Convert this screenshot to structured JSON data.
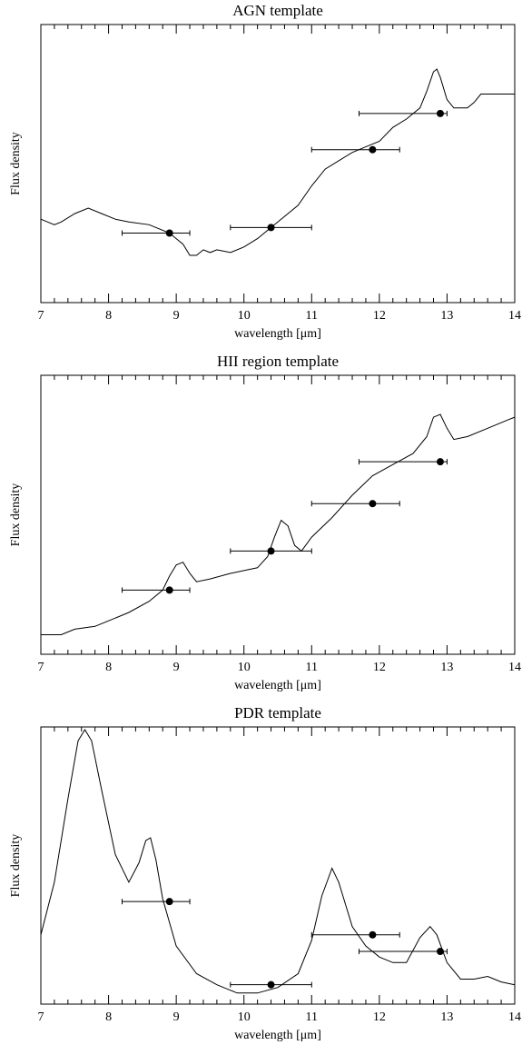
{
  "chart_data": [
    {
      "type": "line",
      "title": "AGN template",
      "xlabel": "wavelength [μm]",
      "ylabel": "Flux density",
      "color": "#000000",
      "xlim": [
        7,
        14
      ],
      "ylim": [
        0,
        1
      ],
      "xticks": [
        7,
        8,
        9,
        10,
        11,
        12,
        13,
        14
      ],
      "x": [
        7.0,
        7.1,
        7.2,
        7.3,
        7.5,
        7.7,
        7.9,
        8.1,
        8.3,
        8.6,
        8.9,
        9.0,
        9.1,
        9.2,
        9.3,
        9.4,
        9.5,
        9.6,
        9.8,
        10.0,
        10.2,
        10.4,
        10.6,
        10.8,
        11.0,
        11.2,
        11.4,
        11.6,
        11.8,
        12.0,
        12.2,
        12.4,
        12.6,
        12.7,
        12.8,
        12.85,
        12.9,
        13.0,
        13.1,
        13.3,
        13.4,
        13.5,
        13.6,
        13.8,
        14.0
      ],
      "values": [
        0.3,
        0.29,
        0.28,
        0.29,
        0.32,
        0.34,
        0.32,
        0.3,
        0.29,
        0.28,
        0.25,
        0.23,
        0.21,
        0.17,
        0.17,
        0.19,
        0.18,
        0.19,
        0.18,
        0.2,
        0.23,
        0.27,
        0.31,
        0.35,
        0.42,
        0.48,
        0.51,
        0.54,
        0.56,
        0.58,
        0.63,
        0.66,
        0.7,
        0.76,
        0.83,
        0.84,
        0.81,
        0.73,
        0.7,
        0.7,
        0.72,
        0.75,
        0.75,
        0.75,
        0.75
      ],
      "points": {
        "x": [
          8.9,
          10.4,
          11.9,
          12.9
        ],
        "values": [
          0.25,
          0.27,
          0.55,
          0.68
        ],
        "x_low": [
          8.2,
          9.8,
          11.0,
          11.7
        ],
        "x_high": [
          9.2,
          11.0,
          12.3,
          13.0
        ]
      }
    },
    {
      "type": "line",
      "title": "HII region template",
      "xlabel": "wavelength [μm]",
      "ylabel": "Flux density",
      "color": "#000000",
      "xlim": [
        7,
        14
      ],
      "ylim": [
        0,
        1
      ],
      "xticks": [
        7,
        8,
        9,
        10,
        11,
        12,
        13,
        14
      ],
      "x": [
        7.0,
        7.3,
        7.5,
        7.8,
        8.0,
        8.3,
        8.6,
        8.8,
        8.9,
        9.0,
        9.1,
        9.2,
        9.3,
        9.5,
        9.8,
        10.0,
        10.2,
        10.35,
        10.45,
        10.55,
        10.65,
        10.75,
        10.85,
        11.0,
        11.3,
        11.6,
        11.9,
        12.2,
        12.5,
        12.7,
        12.8,
        12.9,
        13.0,
        13.1,
        13.3,
        13.6,
        13.9,
        14.0
      ],
      "values": [
        0.07,
        0.07,
        0.09,
        0.1,
        0.12,
        0.15,
        0.19,
        0.23,
        0.28,
        0.32,
        0.33,
        0.29,
        0.26,
        0.27,
        0.29,
        0.3,
        0.31,
        0.35,
        0.42,
        0.48,
        0.46,
        0.39,
        0.37,
        0.42,
        0.49,
        0.57,
        0.64,
        0.68,
        0.72,
        0.78,
        0.85,
        0.86,
        0.81,
        0.77,
        0.78,
        0.81,
        0.84,
        0.85
      ],
      "points": {
        "x": [
          8.9,
          10.4,
          11.9,
          12.9
        ],
        "values": [
          0.23,
          0.37,
          0.54,
          0.69
        ],
        "x_low": [
          8.2,
          9.8,
          11.0,
          11.7
        ],
        "x_high": [
          9.2,
          11.0,
          12.3,
          13.0
        ]
      }
    },
    {
      "type": "line",
      "title": "PDR template",
      "xlabel": "wavelength [μm]",
      "ylabel": "Flux density",
      "color": "#000000",
      "xlim": [
        7,
        14
      ],
      "ylim": [
        0,
        1
      ],
      "xticks": [
        7,
        8,
        9,
        10,
        11,
        12,
        13,
        14
      ],
      "x": [
        7.0,
        7.2,
        7.4,
        7.55,
        7.65,
        7.75,
        7.9,
        8.1,
        8.3,
        8.45,
        8.55,
        8.62,
        8.7,
        8.8,
        9.0,
        9.3,
        9.6,
        9.9,
        10.2,
        10.5,
        10.8,
        11.0,
        11.15,
        11.3,
        11.4,
        11.6,
        11.8,
        12.0,
        12.2,
        12.4,
        12.6,
        12.75,
        12.85,
        13.0,
        13.2,
        13.4,
        13.6,
        13.8,
        14.0
      ],
      "values": [
        0.25,
        0.44,
        0.74,
        0.95,
        0.99,
        0.95,
        0.77,
        0.54,
        0.44,
        0.51,
        0.59,
        0.6,
        0.52,
        0.38,
        0.21,
        0.11,
        0.07,
        0.04,
        0.04,
        0.06,
        0.11,
        0.23,
        0.39,
        0.49,
        0.44,
        0.28,
        0.21,
        0.17,
        0.15,
        0.15,
        0.24,
        0.28,
        0.25,
        0.15,
        0.09,
        0.09,
        0.1,
        0.08,
        0.07
      ],
      "points": {
        "x": [
          8.9,
          10.4,
          11.9,
          12.9
        ],
        "values": [
          0.37,
          0.07,
          0.25,
          0.19
        ],
        "x_low": [
          8.2,
          9.8,
          11.0,
          11.7
        ],
        "x_high": [
          9.2,
          11.0,
          12.3,
          13.0
        ]
      }
    }
  ]
}
